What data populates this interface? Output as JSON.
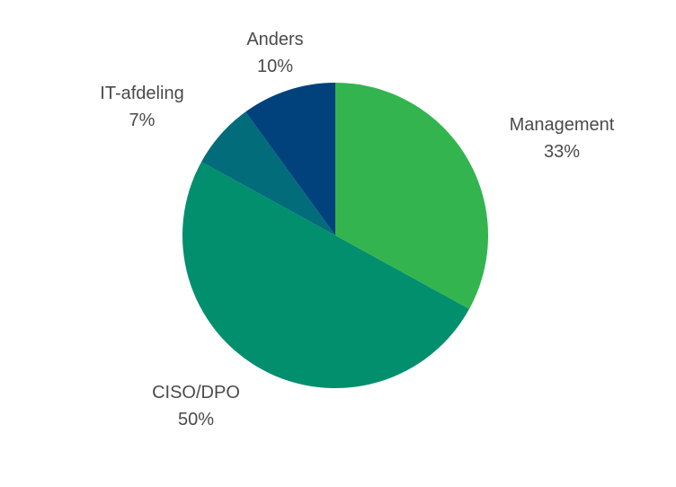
{
  "chart_data": {
    "type": "pie",
    "start_angle_deg": 0,
    "direction": "clockwise",
    "slices": [
      {
        "name": "Management",
        "value": 33,
        "value_label": "33%",
        "color": "#34b44f"
      },
      {
        "name": "CISO/DPO",
        "value": 50,
        "value_label": "50%",
        "color": "#018f6e"
      },
      {
        "name": "IT-afdeling",
        "value": 7,
        "value_label": "7%",
        "color": "#026c7b"
      },
      {
        "name": "Anders",
        "value": 10,
        "value_label": "10%",
        "color": "#02427c"
      }
    ]
  }
}
